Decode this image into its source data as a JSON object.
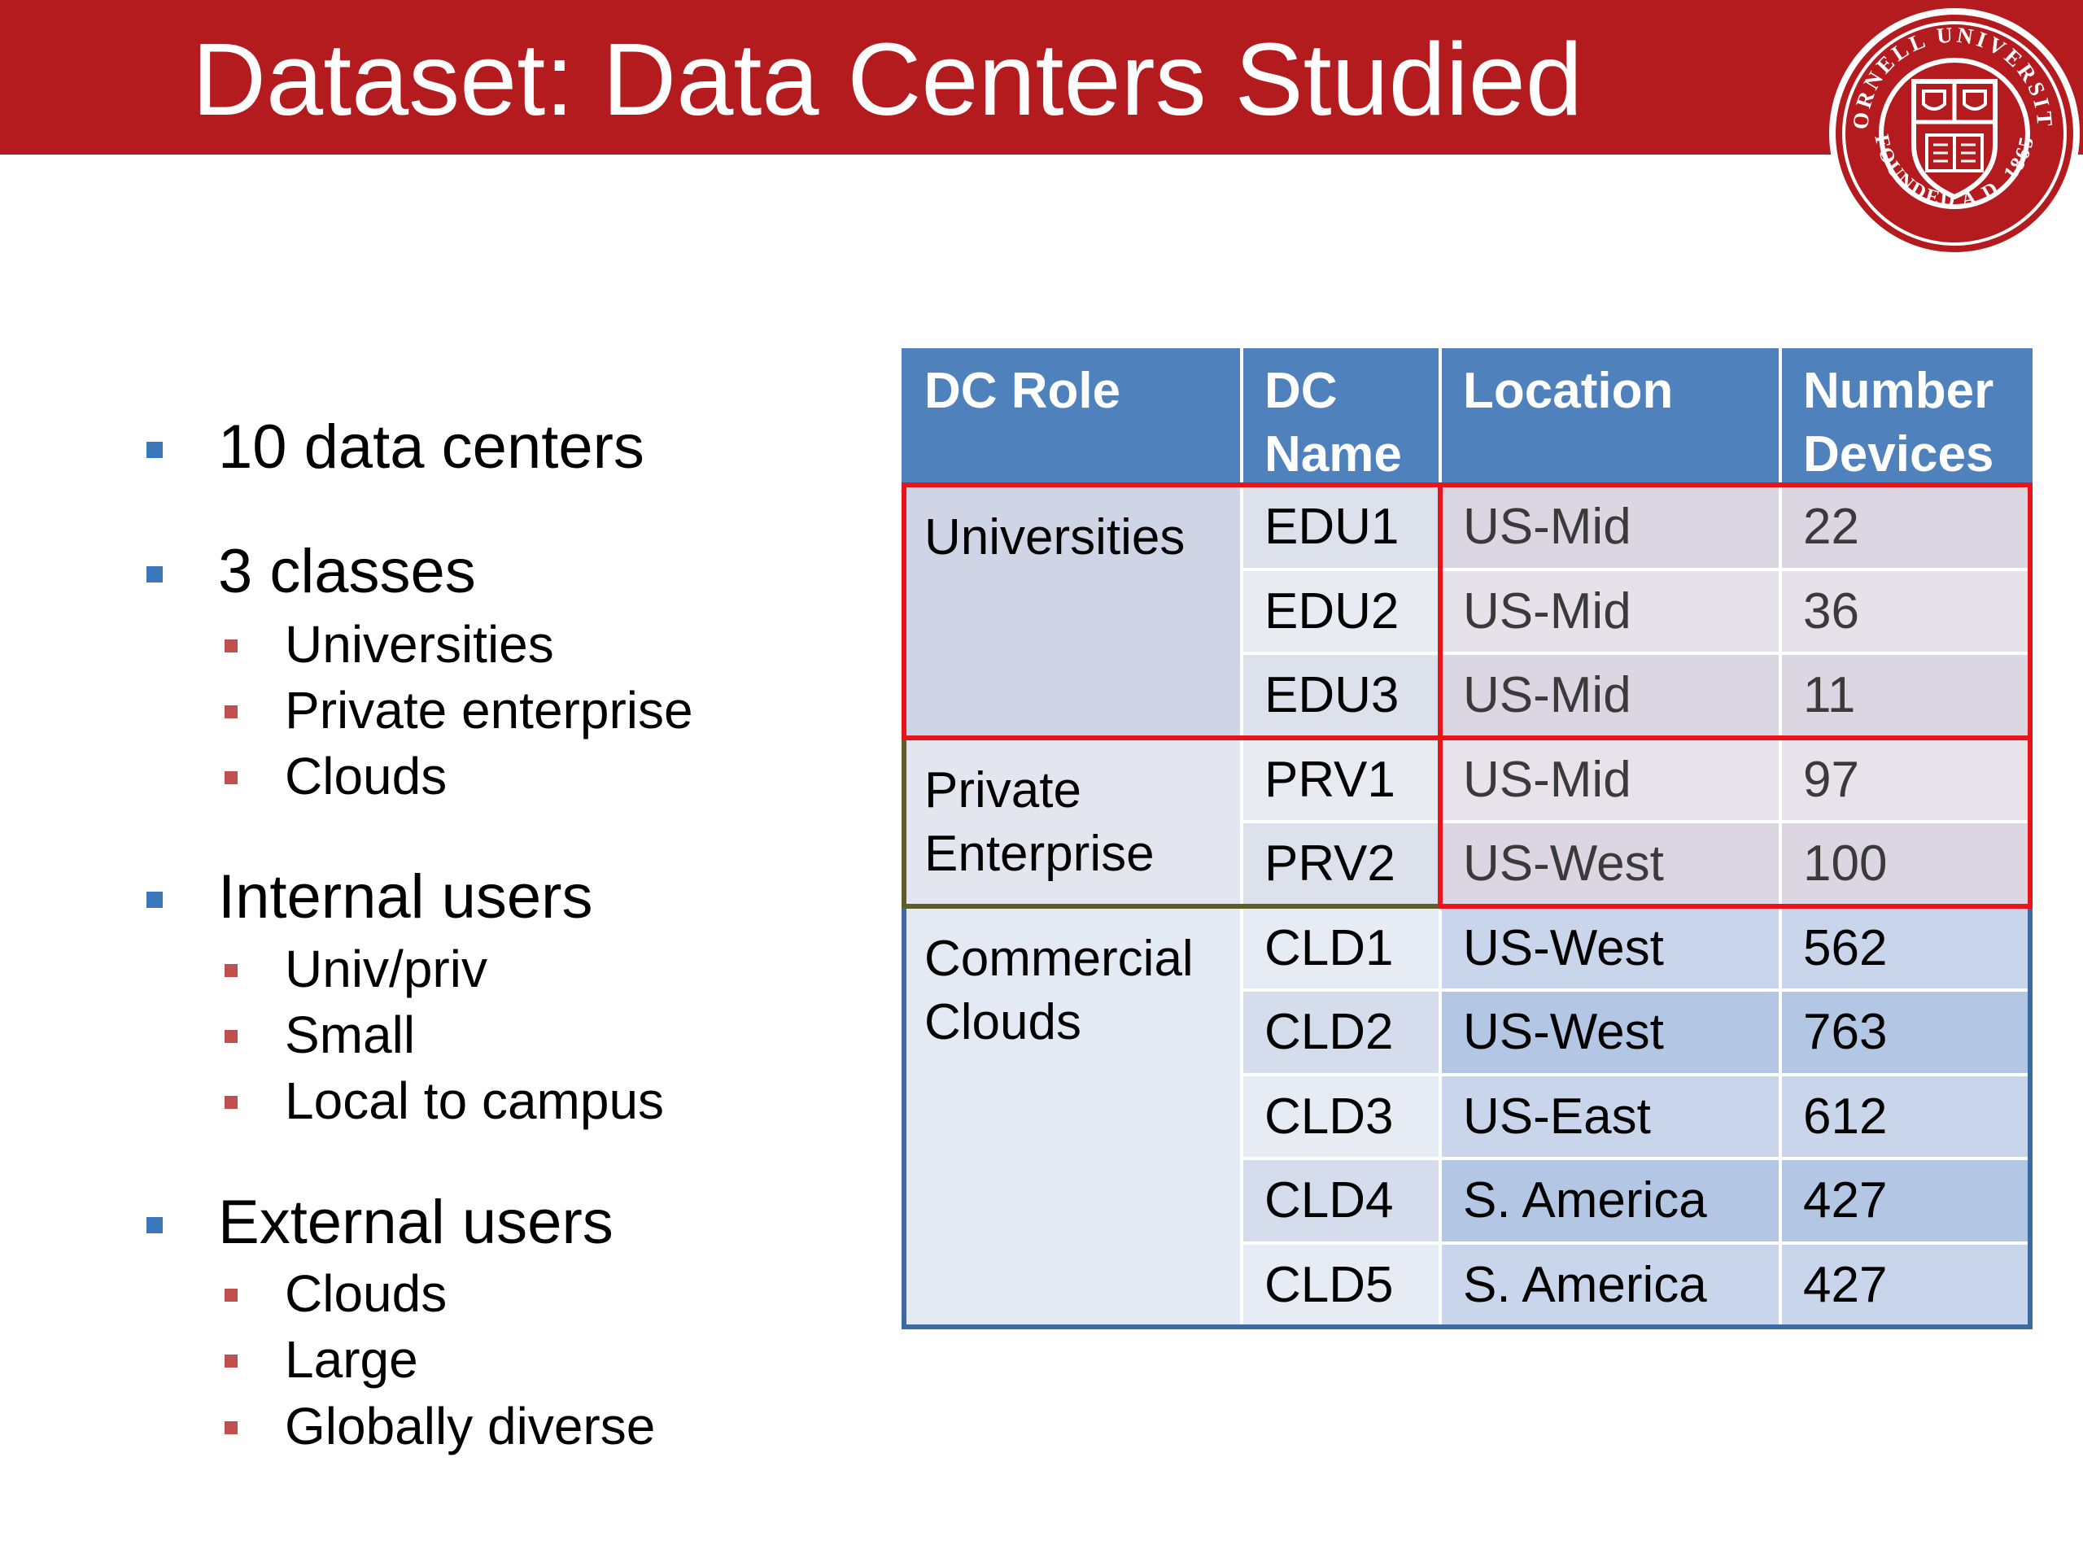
{
  "header": {
    "title": "Dataset: Data Centers Studied",
    "background_color": "#b31b1e"
  },
  "seal": {
    "icon": "cornell-university-seal-icon",
    "text_top": "CORNELL UNIVERSITY",
    "text_bottom": "FOUNDED A.D. 1865"
  },
  "bullets": [
    {
      "text": "10 data centers",
      "sub": []
    },
    {
      "text": "3 classes",
      "sub": [
        "Universities",
        "Private enterprise",
        "Clouds"
      ]
    },
    {
      "text": "Internal users",
      "sub": [
        "Univ/priv",
        "Small",
        "Local to campus"
      ]
    },
    {
      "text": "External users",
      "sub": [
        "Clouds",
        "Large",
        "Globally diverse"
      ]
    }
  ],
  "table": {
    "headers": [
      "DC Role",
      "DC Name",
      "Location",
      "Number Devices"
    ],
    "groups": [
      {
        "role": "Universities",
        "outline_color": "#e8141b",
        "rows": [
          {
            "name": "EDU1",
            "location": "US-Mid",
            "devices": "22"
          },
          {
            "name": "EDU2",
            "location": "US-Mid",
            "devices": "36"
          },
          {
            "name": "EDU3",
            "location": "US-Mid",
            "devices": "11"
          }
        ]
      },
      {
        "role": "Private Enterprise",
        "outline_color": "#5d5d2a",
        "rows": [
          {
            "name": "PRV1",
            "location": "US-Mid",
            "devices": "97"
          },
          {
            "name": "PRV2",
            "location": "US-West",
            "devices": "100"
          }
        ]
      },
      {
        "role": "Commercial Clouds",
        "outline_color": "#3e6aa3",
        "rows": [
          {
            "name": "CLD1",
            "location": "US-West",
            "devices": "562"
          },
          {
            "name": "CLD2",
            "location": "US-West",
            "devices": "763"
          },
          {
            "name": "CLD3",
            "location": "US-East",
            "devices": "612"
          },
          {
            "name": "CLD4",
            "location": "S. America",
            "devices": "427"
          },
          {
            "name": "CLD5",
            "location": "S. America",
            "devices": "427"
          }
        ]
      }
    ],
    "location_devices_outline_color": "#e8141b"
  }
}
